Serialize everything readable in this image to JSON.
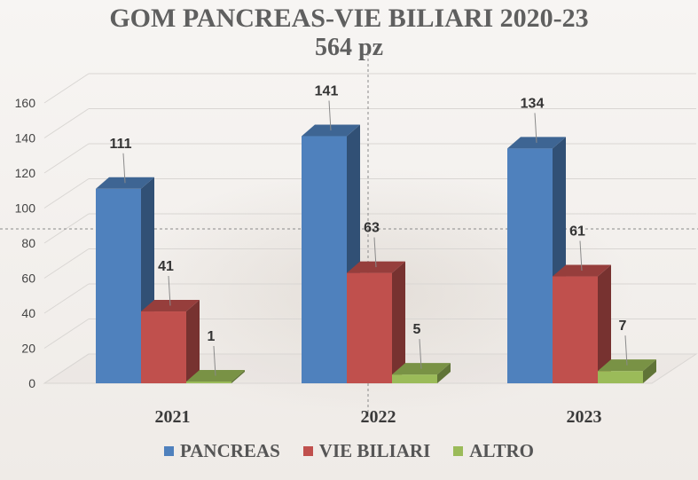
{
  "title": "GOM PANCREAS-VIE BILIARI 2020-23",
  "subtitle": "564 pz",
  "chart_data": {
    "type": "bar",
    "title": "GOM PANCREAS-VIE BILIARI 2020-23",
    "subtitle": "564 pz",
    "categories": [
      "2021",
      "2022",
      "2023"
    ],
    "series": [
      {
        "name": "PANCREAS",
        "values": [
          111,
          141,
          134
        ],
        "color": "#4f81bd"
      },
      {
        "name": "VIE BILIARI",
        "values": [
          41,
          63,
          61
        ],
        "color": "#c0504d"
      },
      {
        "name": "ALTRO",
        "values": [
          1,
          5,
          7
        ],
        "color": "#9bbb59"
      }
    ],
    "yticks": [
      "0",
      "20",
      "40",
      "60",
      "80",
      "100",
      "120",
      "140",
      "160"
    ],
    "ylim": [
      0,
      160
    ],
    "xlabel": "",
    "ylabel": "",
    "legend_position": "bottom",
    "grid": true,
    "style": "3d-clustered-column"
  },
  "legend": [
    {
      "label": "PANCREAS",
      "color": "#4f81bd"
    },
    {
      "label": "VIE BILIARI",
      "color": "#c0504d"
    },
    {
      "label": "ALTRO",
      "color": "#9bbb59"
    }
  ]
}
